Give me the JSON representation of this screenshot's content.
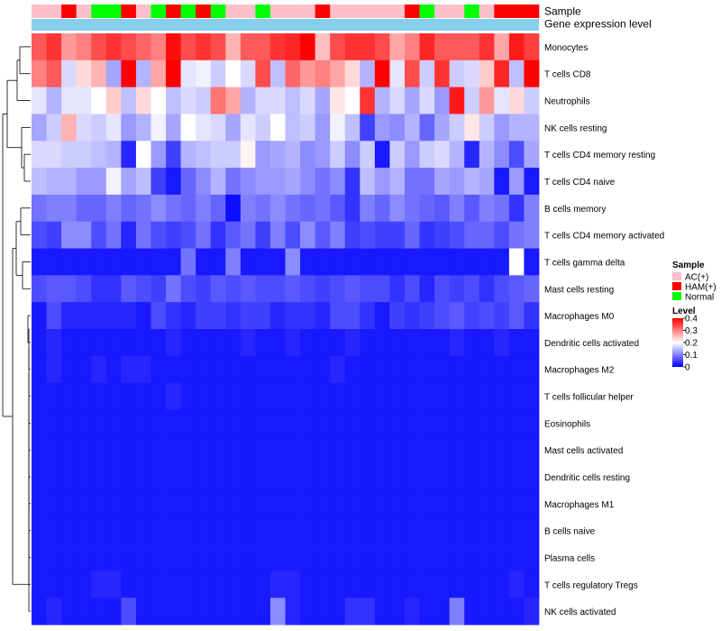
{
  "chart_data": {
    "type": "heatmap",
    "title": "",
    "annotation_tracks": [
      "Sample",
      "Gene expression level"
    ],
    "sample_groups": [
      "AC(+)",
      "AC(+)",
      "HAM(+)",
      "AC(+)",
      "Normal",
      "Normal",
      "HAM(+)",
      "AC(+)",
      "Normal",
      "HAM(+)",
      "Normal",
      "HAM(+)",
      "Normal",
      "AC(+)",
      "AC(+)",
      "Normal",
      "AC(+)",
      "AC(+)",
      "AC(+)",
      "HAM(+)",
      "AC(+)",
      "AC(+)",
      "AC(+)",
      "AC(+)",
      "AC(+)",
      "HAM(+)",
      "Normal",
      "AC(+)",
      "AC(+)",
      "Normal",
      "AC(+)",
      "HAM(+)",
      "HAM(+)",
      "HAM(+)"
    ],
    "group_colors": {
      "AC(+)": "#ffc0cb",
      "HAM(+)": "#ff0000",
      "Normal": "#00ff00"
    },
    "expression_track_color": "#87ceeb",
    "legend_sample_title": "Sample",
    "legend_sample_entries": [
      "AC(+)",
      "HAM(+)",
      "Normal"
    ],
    "legend_level_title": "Level",
    "color_scale": {
      "min": 0,
      "mid": 0.2,
      "max": 0.4,
      "low": "#0000ff",
      "midc": "#ffffff",
      "high": "#ff0000"
    },
    "legend_level_ticks": [
      "0.4",
      "0.3",
      "0.2",
      "0.1",
      "0"
    ],
    "legend_level_tick_values": [
      0.4,
      0.3,
      0.2,
      0.1,
      0
    ],
    "dendrogram_row_order": [
      "Monocytes",
      "T cells CD8",
      "Neutrophils",
      "NK cells resting",
      "T cells CD4 memory resting",
      "T cells CD4 naive",
      "B cells memory",
      "T cells CD4 memory activated",
      "T cells gamma delta",
      "Mast cells resting",
      "Macrophages M0",
      "Dendritic cells activated",
      "Macrophages M2",
      "T cells follicular helper",
      "Eosinophils",
      "Mast cells activated",
      "Dendritic cells resting",
      "Macrophages M1",
      "B cells naive",
      "Plasma cells",
      "T cells regulatory  Tregs",
      "NK cells activated"
    ],
    "rows": [
      {
        "label": "Monocytes",
        "values": [
          0.33,
          0.36,
          0.28,
          0.3,
          0.34,
          0.36,
          0.34,
          0.32,
          0.3,
          0.39,
          0.34,
          0.36,
          0.34,
          0.26,
          0.33,
          0.33,
          0.36,
          0.37,
          0.4,
          0.25,
          0.34,
          0.36,
          0.36,
          0.34,
          0.27,
          0.3,
          0.37,
          0.33,
          0.33,
          0.33,
          0.36,
          0.27,
          0.38,
          0.35
        ]
      },
      {
        "label": "T cells CD8",
        "values": [
          0.3,
          0.33,
          0.17,
          0.23,
          0.26,
          0.13,
          0.4,
          0.14,
          0.27,
          0.4,
          0.18,
          0.19,
          0.16,
          0.2,
          0.17,
          0.34,
          0.15,
          0.32,
          0.28,
          0.3,
          0.27,
          0.23,
          0.14,
          0.4,
          0.18,
          0.34,
          0.16,
          0.36,
          0.16,
          0.17,
          0.24,
          0.37,
          0.15,
          0.4
        ]
      },
      {
        "label": "Neutrophils",
        "values": [
          0.18,
          0.14,
          0.18,
          0.18,
          0.2,
          0.24,
          0.15,
          0.23,
          0.2,
          0.15,
          0.17,
          0.16,
          0.31,
          0.27,
          0.14,
          0.17,
          0.17,
          0.15,
          0.17,
          0.13,
          0.22,
          0.2,
          0.36,
          0.14,
          0.17,
          0.13,
          0.17,
          0.12,
          0.38,
          0.16,
          0.28,
          0.18,
          0.23,
          0.16
        ]
      },
      {
        "label": "NK cells resting",
        "values": [
          0.13,
          0.16,
          0.26,
          0.17,
          0.16,
          0.18,
          0.12,
          0.14,
          0.19,
          0.13,
          0.2,
          0.18,
          0.17,
          0.13,
          0.18,
          0.16,
          0.2,
          0.15,
          0.16,
          0.12,
          0.19,
          0.15,
          0.05,
          0.12,
          0.11,
          0.14,
          0.08,
          0.13,
          0.16,
          0.22,
          0.16,
          0.12,
          0.14,
          0.14
        ]
      },
      {
        "label": "T cells CD4 memory resting",
        "values": [
          0.17,
          0.17,
          0.16,
          0.16,
          0.15,
          0.14,
          0.03,
          0.2,
          0.12,
          0.05,
          0.14,
          0.15,
          0.16,
          0.16,
          0.21,
          0.12,
          0.13,
          0.14,
          0.11,
          0.12,
          0.16,
          0.11,
          0.16,
          0.02,
          0.16,
          0.12,
          0.16,
          0.17,
          0.14,
          0.03,
          0.14,
          0.11,
          0.06,
          0.13
        ]
      },
      {
        "label": "T cells CD4 naive",
        "values": [
          0.15,
          0.14,
          0.14,
          0.12,
          0.12,
          0.19,
          0.13,
          0.15,
          0.05,
          0.02,
          0.08,
          0.11,
          0.14,
          0.09,
          0.11,
          0.12,
          0.12,
          0.13,
          0.11,
          0.09,
          0.11,
          0.04,
          0.15,
          0.12,
          0.14,
          0.09,
          0.09,
          0.13,
          0.12,
          0.14,
          0.13,
          0.02,
          0.12,
          0.02
        ]
      },
      {
        "label": "B cells memory",
        "values": [
          0.09,
          0.1,
          0.1,
          0.08,
          0.08,
          0.1,
          0.08,
          0.09,
          0.11,
          0.09,
          0.08,
          0.1,
          0.08,
          0.01,
          0.1,
          0.09,
          0.11,
          0.09,
          0.08,
          0.09,
          0.07,
          0.04,
          0.1,
          0.08,
          0.11,
          0.09,
          0.08,
          0.07,
          0.1,
          0.07,
          0.1,
          0.09,
          0.04,
          0.1
        ]
      },
      {
        "label": "T cells CD4 memory activated",
        "values": [
          0.06,
          0.05,
          0.11,
          0.11,
          0.06,
          0.09,
          0.03,
          0.09,
          0.06,
          0.05,
          0.06,
          0.09,
          0.04,
          0.07,
          0.09,
          0.05,
          0.1,
          0.06,
          0.11,
          0.07,
          0.1,
          0.05,
          0.06,
          0.05,
          0.05,
          0.08,
          0.04,
          0.05,
          0.06,
          0.08,
          0.08,
          0.06,
          0.09,
          0.1
        ]
      },
      {
        "label": "T cells gamma delta",
        "values": [
          0.02,
          0.02,
          0.02,
          0.02,
          0.02,
          0.02,
          0.02,
          0.02,
          0.02,
          0.02,
          0.09,
          0.02,
          0.02,
          0.1,
          0.02,
          0.02,
          0.02,
          0.11,
          0.02,
          0.02,
          0.02,
          0.02,
          0.02,
          0.02,
          0.02,
          0.02,
          0.02,
          0.02,
          0.02,
          0.02,
          0.02,
          0.02,
          0.2,
          0.02
        ]
      },
      {
        "label": "Mast cells resting",
        "values": [
          0.06,
          0.07,
          0.07,
          0.06,
          0.04,
          0.04,
          0.07,
          0.06,
          0.05,
          0.09,
          0.06,
          0.05,
          0.07,
          0.06,
          0.07,
          0.06,
          0.06,
          0.07,
          0.06,
          0.05,
          0.06,
          0.07,
          0.06,
          0.06,
          0.04,
          0.06,
          0.03,
          0.06,
          0.05,
          0.06,
          0.04,
          0.06,
          0.07,
          0.08
        ]
      },
      {
        "label": "Macrophages M0",
        "values": [
          0.02,
          0.06,
          0.03,
          0.03,
          0.03,
          0.03,
          0.03,
          0.02,
          0.06,
          0.04,
          0.03,
          0.05,
          0.05,
          0.04,
          0.05,
          0.05,
          0.03,
          0.04,
          0.04,
          0.03,
          0.06,
          0.06,
          0.04,
          0.02,
          0.05,
          0.04,
          0.05,
          0.06,
          0.07,
          0.05,
          0.06,
          0.05,
          0.07,
          0.04
        ]
      },
      {
        "label": "Dendritic cells activated",
        "values": [
          0.02,
          0.03,
          0.02,
          0.02,
          0.02,
          0.02,
          0.02,
          0.02,
          0.02,
          0.03,
          0.02,
          0.02,
          0.02,
          0.02,
          0.03,
          0.02,
          0.02,
          0.03,
          0.02,
          0.02,
          0.02,
          0.03,
          0.02,
          0.02,
          0.02,
          0.02,
          0.02,
          0.02,
          0.03,
          0.02,
          0.02,
          0.03,
          0.02,
          0.02
        ]
      },
      {
        "label": "Macrophages M2",
        "values": [
          0.02,
          0.03,
          0.02,
          0.02,
          0.03,
          0.02,
          0.03,
          0.03,
          0.02,
          0.02,
          0.02,
          0.02,
          0.02,
          0.02,
          0.02,
          0.02,
          0.02,
          0.02,
          0.02,
          0.02,
          0.03,
          0.02,
          0.02,
          0.02,
          0.02,
          0.02,
          0.02,
          0.02,
          0.02,
          0.02,
          0.02,
          0.02,
          0.02,
          0.02
        ]
      },
      {
        "label": "T cells follicular helper",
        "values": [
          0.02,
          0.02,
          0.02,
          0.02,
          0.02,
          0.02,
          0.02,
          0.02,
          0.02,
          0.03,
          0.02,
          0.02,
          0.02,
          0.02,
          0.02,
          0.02,
          0.02,
          0.02,
          0.02,
          0.02,
          0.02,
          0.02,
          0.02,
          0.02,
          0.02,
          0.02,
          0.02,
          0.02,
          0.02,
          0.02,
          0.02,
          0.02,
          0.02,
          0.02
        ]
      },
      {
        "label": "Eosinophils",
        "values": [
          0.02,
          0.02,
          0.02,
          0.02,
          0.02,
          0.02,
          0.02,
          0.02,
          0.02,
          0.02,
          0.02,
          0.02,
          0.02,
          0.02,
          0.02,
          0.02,
          0.02,
          0.02,
          0.02,
          0.02,
          0.02,
          0.02,
          0.02,
          0.02,
          0.02,
          0.02,
          0.02,
          0.02,
          0.02,
          0.02,
          0.02,
          0.02,
          0.02,
          0.02
        ]
      },
      {
        "label": "Mast cells activated",
        "values": [
          0.02,
          0.02,
          0.02,
          0.02,
          0.02,
          0.02,
          0.02,
          0.02,
          0.02,
          0.02,
          0.02,
          0.02,
          0.02,
          0.02,
          0.02,
          0.02,
          0.02,
          0.02,
          0.02,
          0.02,
          0.02,
          0.02,
          0.02,
          0.02,
          0.02,
          0.02,
          0.02,
          0.02,
          0.02,
          0.02,
          0.02,
          0.02,
          0.02,
          0.02
        ]
      },
      {
        "label": "Dendritic cells resting",
        "values": [
          0.02,
          0.02,
          0.02,
          0.02,
          0.02,
          0.02,
          0.02,
          0.02,
          0.02,
          0.02,
          0.02,
          0.02,
          0.02,
          0.02,
          0.02,
          0.02,
          0.02,
          0.02,
          0.02,
          0.02,
          0.02,
          0.02,
          0.02,
          0.02,
          0.02,
          0.02,
          0.02,
          0.02,
          0.02,
          0.02,
          0.02,
          0.02,
          0.02,
          0.02
        ]
      },
      {
        "label": "Macrophages M1",
        "values": [
          0.02,
          0.02,
          0.02,
          0.02,
          0.02,
          0.02,
          0.02,
          0.02,
          0.02,
          0.02,
          0.02,
          0.02,
          0.02,
          0.02,
          0.02,
          0.02,
          0.02,
          0.02,
          0.02,
          0.02,
          0.02,
          0.02,
          0.02,
          0.02,
          0.02,
          0.02,
          0.02,
          0.02,
          0.02,
          0.02,
          0.02,
          0.02,
          0.02,
          0.02
        ]
      },
      {
        "label": "B cells naive",
        "values": [
          0.02,
          0.02,
          0.02,
          0.02,
          0.02,
          0.02,
          0.02,
          0.02,
          0.02,
          0.02,
          0.02,
          0.02,
          0.02,
          0.02,
          0.02,
          0.02,
          0.02,
          0.02,
          0.02,
          0.02,
          0.02,
          0.02,
          0.02,
          0.02,
          0.02,
          0.02,
          0.02,
          0.02,
          0.02,
          0.02,
          0.02,
          0.02,
          0.02,
          0.02
        ]
      },
      {
        "label": "Plasma cells",
        "values": [
          0.02,
          0.02,
          0.02,
          0.02,
          0.02,
          0.02,
          0.02,
          0.02,
          0.02,
          0.02,
          0.02,
          0.02,
          0.02,
          0.02,
          0.02,
          0.02,
          0.02,
          0.02,
          0.02,
          0.02,
          0.02,
          0.02,
          0.02,
          0.02,
          0.02,
          0.02,
          0.02,
          0.02,
          0.02,
          0.02,
          0.02,
          0.02,
          0.02,
          0.02
        ]
      },
      {
        "label": "T cells regulatory  Tregs",
        "values": [
          0.02,
          0.02,
          0.02,
          0.02,
          0.03,
          0.03,
          0.02,
          0.02,
          0.02,
          0.02,
          0.02,
          0.02,
          0.02,
          0.02,
          0.02,
          0.02,
          0.03,
          0.03,
          0.02,
          0.02,
          0.02,
          0.02,
          0.02,
          0.02,
          0.02,
          0.02,
          0.02,
          0.02,
          0.02,
          0.02,
          0.02,
          0.02,
          0.03,
          0.02
        ]
      },
      {
        "label": "NK cells activated",
        "values": [
          0.02,
          0.03,
          0.02,
          0.02,
          0.02,
          0.02,
          0.06,
          0.02,
          0.02,
          0.02,
          0.02,
          0.02,
          0.02,
          0.02,
          0.02,
          0.02,
          0.11,
          0.03,
          0.02,
          0.02,
          0.02,
          0.04,
          0.04,
          0.02,
          0.02,
          0.03,
          0.02,
          0.02,
          0.1,
          0.02,
          0.02,
          0.02,
          0.02,
          0.03
        ]
      }
    ]
  }
}
